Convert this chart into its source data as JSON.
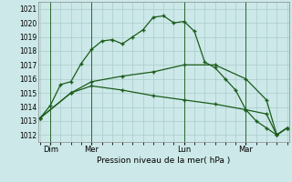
{
  "title": "Pression niveau de la mer( hPa )",
  "bg_color": "#cce8e8",
  "plot_bg_color": "#cce8e8",
  "grid_color": "#aacccc",
  "line_color": "#1a5c1a",
  "ylim": [
    1011.5,
    1021.5
  ],
  "yticks": [
    1012,
    1013,
    1014,
    1015,
    1016,
    1017,
    1018,
    1019,
    1020,
    1021
  ],
  "xtick_labels": [
    "Dim",
    "Mer",
    "Lun",
    "Mar"
  ],
  "xtick_positions": [
    1,
    5,
    14,
    20
  ],
  "vline_positions": [
    1,
    5,
    14,
    20
  ],
  "series1_x": [
    0,
    1,
    2,
    3,
    4,
    5,
    6,
    7,
    8,
    9,
    10,
    11,
    12,
    13,
    14,
    15,
    16,
    17,
    18,
    19,
    20,
    21,
    22,
    23,
    24
  ],
  "series1_y": [
    1013.2,
    1014.1,
    1015.6,
    1015.8,
    1017.1,
    1018.1,
    1018.7,
    1018.8,
    1018.5,
    1019.0,
    1019.5,
    1020.4,
    1020.5,
    1020.0,
    1020.1,
    1019.4,
    1017.2,
    1016.8,
    1016.0,
    1015.2,
    1013.8,
    1013.0,
    1012.5,
    1012.0,
    1012.5
  ],
  "series2_x": [
    0,
    3,
    5,
    8,
    11,
    14,
    17,
    20,
    22,
    23,
    24
  ],
  "series2_y": [
    1013.2,
    1015.0,
    1015.8,
    1016.2,
    1016.5,
    1017.0,
    1017.0,
    1016.0,
    1014.5,
    1012.0,
    1012.5
  ],
  "series3_x": [
    0,
    3,
    5,
    8,
    11,
    14,
    17,
    20,
    22,
    23,
    24
  ],
  "series3_y": [
    1013.2,
    1015.0,
    1015.5,
    1015.2,
    1014.8,
    1014.5,
    1014.2,
    1013.8,
    1013.5,
    1012.0,
    1012.5
  ]
}
